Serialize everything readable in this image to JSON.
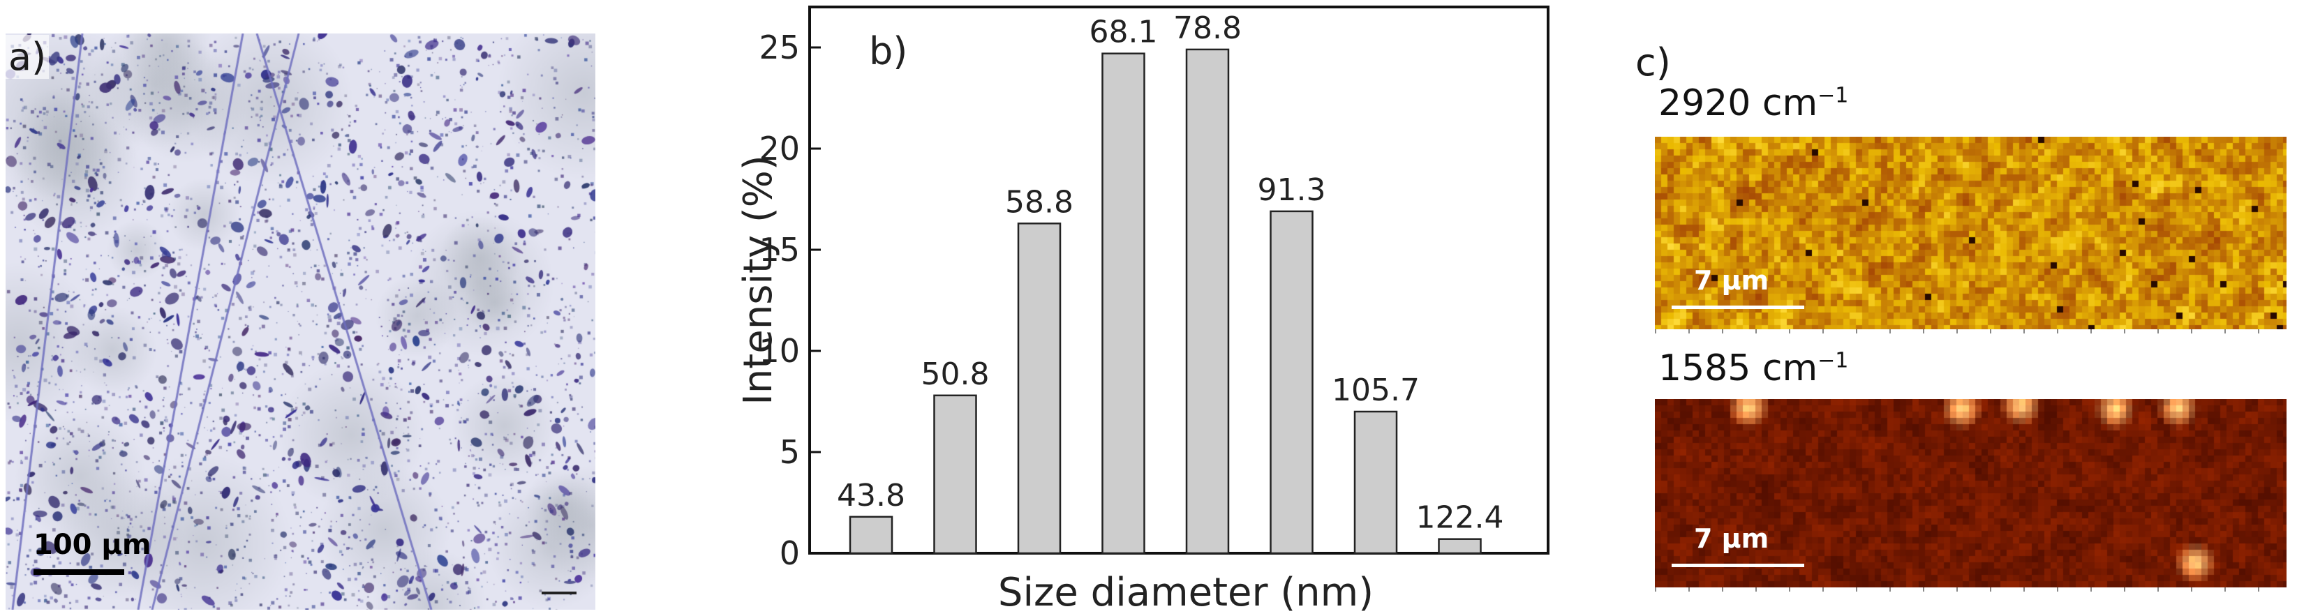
{
  "panel_a": {
    "letter": "a)",
    "scale_label": "100 μm"
  },
  "panel_c": {
    "letter": "c)",
    "maps": [
      {
        "wavenumber": "2920",
        "unit": "cm",
        "exponent": "−1",
        "scale_label": "7 μm",
        "colormap": "bright"
      },
      {
        "wavenumber": "1585",
        "unit": "cm",
        "exponent": "−1",
        "scale_label": "7 μm",
        "colormap": "dark"
      }
    ]
  },
  "chart_data": {
    "type": "bar",
    "panel_label": "b)",
    "categories": [
      "43.8",
      "50.8",
      "58.8",
      "68.1",
      "78.8",
      "91.3",
      "105.7",
      "122.4"
    ],
    "values": [
      1.8,
      7.8,
      16.3,
      24.7,
      24.9,
      16.9,
      7.0,
      0.7
    ],
    "xlabel": "Size diameter (nm)",
    "ylabel": "Intensity (%)",
    "ylim": [
      0,
      27
    ],
    "yticks": [
      0,
      5,
      10,
      15,
      20,
      25
    ],
    "bar_color": "#cdcdcd",
    "bar_edge": "#222222",
    "grid": false,
    "legend": "none"
  }
}
